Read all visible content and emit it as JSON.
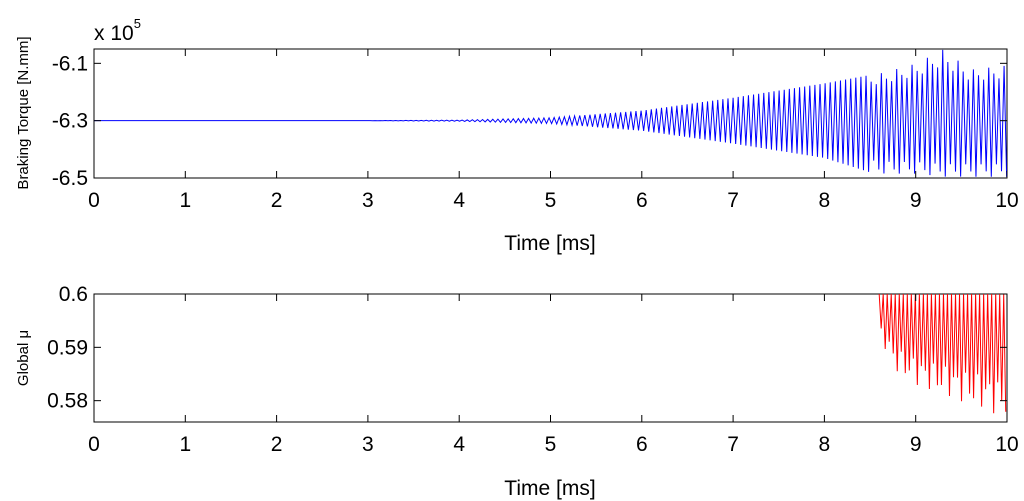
{
  "chart_data": [
    {
      "type": "line",
      "title": "",
      "xlabel": "Time [ms]",
      "ylabel": "Braking Torque [N.mm]",
      "y_multiplier_label": "x 10",
      "y_multiplier_exponent": "5",
      "xlim": [
        0,
        10
      ],
      "ylim": [
        -6.5,
        -6.05
      ],
      "x_ticks": [
        0,
        1,
        2,
        3,
        4,
        5,
        6,
        7,
        8,
        9,
        10
      ],
      "x_tick_labels": [
        "0",
        "1",
        "2",
        "3",
        "4",
        "5",
        "6",
        "7",
        "8",
        "9",
        "10"
      ],
      "y_ticks": [
        -6.5,
        -6.3,
        -6.1
      ],
      "y_tick_labels": [
        "-6.5",
        "-6.3",
        "-6.1"
      ],
      "grid": false,
      "series": [
        {
          "color": "#0000ff",
          "style": "oscillation",
          "center": -6.3,
          "envelope": {
            "x": [
              0,
              3,
              4,
              5,
              6,
              7,
              8,
              8.6,
              9,
              9.3,
              9.6,
              10
            ],
            "upper": [
              -6.3,
              -6.3,
              -6.298,
              -6.29,
              -6.265,
              -6.22,
              -6.17,
              -6.135,
              -6.1,
              -6.05,
              -6.12,
              -6.105
            ],
            "lower": [
              -6.3,
              -6.3,
              -6.302,
              -6.31,
              -6.335,
              -6.38,
              -6.43,
              -6.49,
              -6.49,
              -6.5,
              -6.5,
              -6.5
            ]
          }
        }
      ]
    },
    {
      "type": "line",
      "title": "",
      "xlabel": "Time [ms]",
      "ylabel": "Global μ",
      "xlim": [
        0,
        10
      ],
      "ylim": [
        0.576,
        0.6
      ],
      "x_ticks": [
        0,
        1,
        2,
        3,
        4,
        5,
        6,
        7,
        8,
        9,
        10
      ],
      "x_tick_labels": [
        "0",
        "1",
        "2",
        "3",
        "4",
        "5",
        "6",
        "7",
        "8",
        "9",
        "10"
      ],
      "y_ticks": [
        0.58,
        0.59,
        0.6
      ],
      "y_tick_labels": [
        "0.58",
        "0.59",
        "0.6"
      ],
      "grid": false,
      "series": [
        {
          "color": "#ff0000",
          "style": "oscillation",
          "start_x": 8.6,
          "top": 0.6,
          "envelope": {
            "x": [
              8.6,
              8.8,
              9,
              9.2,
              9.4,
              9.6,
              9.8,
              10
            ],
            "lower": [
              0.592,
              0.585,
              0.583,
              0.5815,
              0.5805,
              0.579,
              0.578,
              0.5765
            ]
          }
        }
      ]
    }
  ]
}
